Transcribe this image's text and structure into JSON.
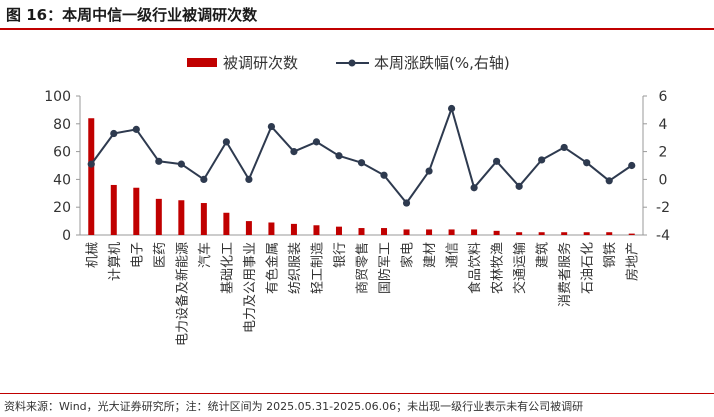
{
  "header": {
    "title": "图 16：本周中信一级行业被调研次数"
  },
  "footer": {
    "source": "资料来源：Wind，光大证券研究所；注：统计区间为 2025.05.31-2025.06.06；未出现一级行业表示未有公司被调研"
  },
  "colors": {
    "bar": "#c00000",
    "line": "#2e3a4f",
    "axis": "#999999",
    "rule": "#c00000"
  },
  "chart_data": {
    "type": "bar",
    "categories": [
      "机械",
      "计算机",
      "电子",
      "医药",
      "电力设备及新能源",
      "汽车",
      "基础化工",
      "电力及公用事业",
      "有色金属",
      "纺织服装",
      "轻工制造",
      "银行",
      "商贸零售",
      "国防军工",
      "家电",
      "建材",
      "通信",
      "食品饮料",
      "农林牧渔",
      "交通运输",
      "建筑",
      "消费者服务",
      "石油石化",
      "钢铁",
      "房地产"
    ],
    "series": [
      {
        "name": "被调研次数",
        "type": "bar",
        "axis": "left",
        "values": [
          84,
          36,
          34,
          26,
          25,
          23,
          16,
          10,
          9,
          8,
          7,
          6,
          5,
          5,
          4,
          4,
          4,
          4,
          3,
          2,
          2,
          2,
          2,
          2,
          1
        ]
      },
      {
        "name": "本周涨跌幅(%,右轴)",
        "type": "line",
        "axis": "right",
        "values": [
          1.1,
          3.3,
          3.6,
          1.3,
          1.1,
          0.0,
          2.7,
          0.0,
          3.8,
          2.0,
          2.7,
          1.7,
          1.2,
          0.3,
          -1.7,
          0.6,
          5.1,
          -0.6,
          1.3,
          -0.5,
          1.4,
          2.3,
          1.2,
          -0.1,
          1.0
        ]
      }
    ],
    "ylim": [
      0,
      100
    ],
    "yticks": [
      0,
      20,
      40,
      60,
      80,
      100
    ],
    "y2lim": [
      -4,
      6
    ],
    "y2ticks": [
      -4,
      -2,
      0,
      2,
      4,
      6
    ],
    "legend": "top-center",
    "grid": false
  }
}
